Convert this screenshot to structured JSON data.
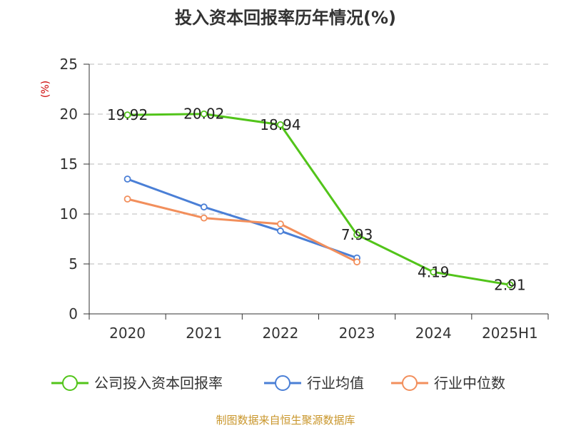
{
  "title": "投入资本回报率历年情况(%)",
  "source": "制图数据来自恒生聚源数据库",
  "chart_data": {
    "type": "line",
    "title": "投入资本回报率历年情况(%)",
    "ylabel": "(%)",
    "xlabel": "",
    "categories": [
      "2020",
      "2021",
      "2022",
      "2023",
      "2024",
      "2025H1"
    ],
    "ylim": [
      0,
      25
    ],
    "yticks": [
      0,
      5,
      10,
      15,
      20,
      25
    ],
    "grid": true,
    "legend_position": "bottom",
    "series": [
      {
        "name": "公司投入资本回报率",
        "values": [
          19.92,
          20.02,
          18.94,
          7.93,
          4.19,
          2.91
        ],
        "labels": [
          "19.92",
          "20.02",
          "18.94",
          "7.93",
          "4.19",
          "2.91"
        ],
        "color": "#52c41a"
      },
      {
        "name": "行业均值",
        "values": [
          13.5,
          10.7,
          8.3,
          5.6,
          null,
          null
        ],
        "color": "#4a7fd6"
      },
      {
        "name": "行业中位数",
        "values": [
          11.5,
          9.6,
          9.0,
          5.2,
          null,
          null
        ],
        "color": "#f28f5c"
      }
    ]
  }
}
